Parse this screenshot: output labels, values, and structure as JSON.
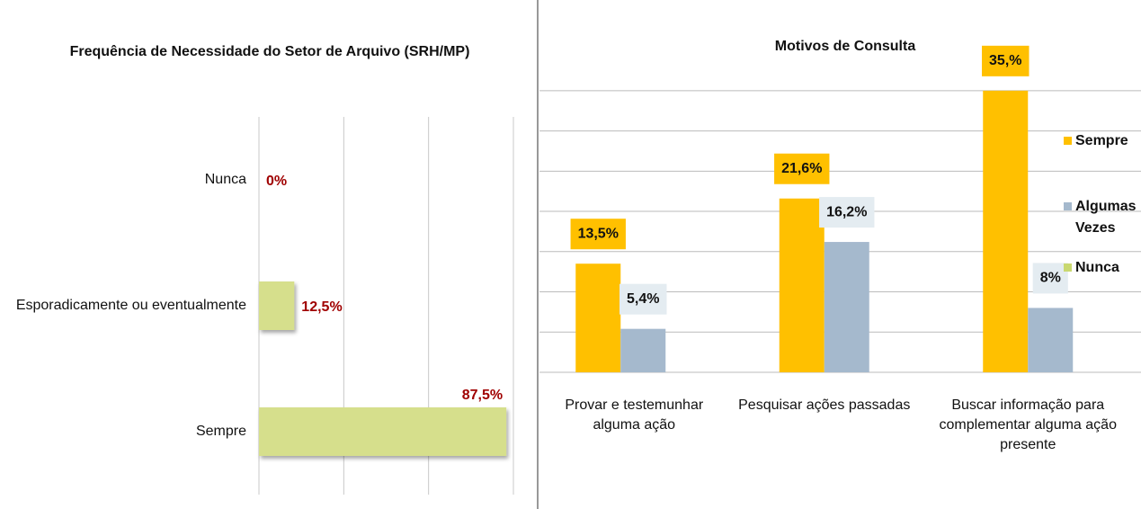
{
  "chart_data": [
    {
      "type": "hbar",
      "title": "Frequência de Necessidade do Setor de Arquivo (SRH/MP)",
      "categories": [
        "Nunca",
        "Esporadicamente ou eventualmente",
        "Sempre"
      ],
      "values": [
        0,
        12.5,
        87.5
      ],
      "value_labels": [
        "0%",
        "12,5%",
        "87,5%"
      ],
      "color": "#d6df8c",
      "xlim": [
        0,
        90
      ],
      "xticks": [
        0,
        30,
        60,
        90
      ],
      "grid": true
    },
    {
      "type": "bar",
      "title": "Motivos de Consulta",
      "categories": [
        "Provar e testemunhar alguma ação",
        "Pesquisar ações passadas",
        "Buscar informação para complementar alguma ação presente"
      ],
      "series": [
        {
          "name": "Sempre",
          "color": "#ffc000",
          "values": [
            13.5,
            21.6,
            35
          ],
          "value_labels": [
            "13,5%",
            "21,6%",
            "35,%"
          ]
        },
        {
          "name": "Algumas Vezes",
          "color": "#a5b9cd",
          "values": [
            5.4,
            16.2,
            8
          ],
          "value_labels": [
            "5,4%",
            "16,2%",
            "8%"
          ]
        },
        {
          "name": "Nunca",
          "color": "#c9d870",
          "values": [
            null,
            null,
            null
          ]
        }
      ],
      "ylim": [
        0,
        38
      ],
      "yticks": [
        0,
        5,
        10,
        15,
        20,
        25,
        30,
        35
      ],
      "grid": true,
      "legend": "right"
    }
  ]
}
